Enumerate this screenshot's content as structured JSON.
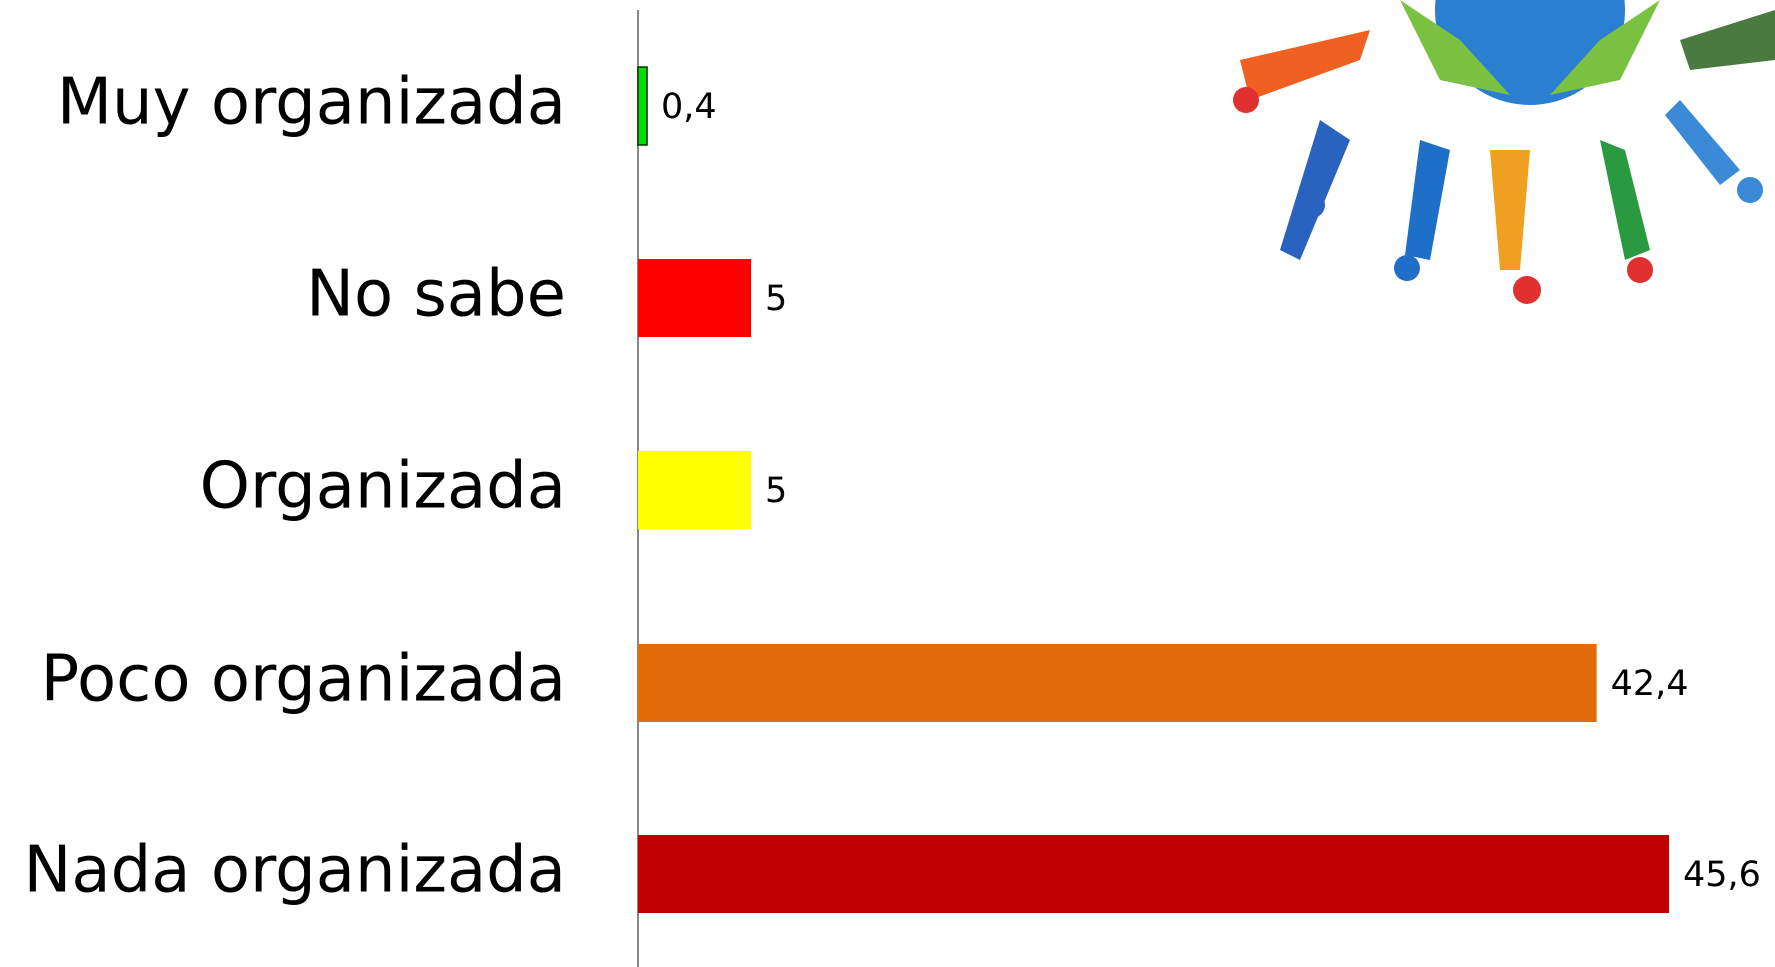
{
  "chart_data": {
    "type": "bar",
    "orientation": "horizontal",
    "categories": [
      "Muy organizada",
      "No sabe",
      "Organizada",
      "Poco organizada",
      "Nada organizada"
    ],
    "values": [
      0.4,
      5,
      5,
      42.4,
      45.6
    ],
    "value_labels": [
      "0,4",
      "5",
      "5",
      "42,4",
      "45,6"
    ],
    "colors": [
      "#00dd00",
      "#ff0000",
      "#ffff00",
      "#e36c0a",
      "#c00000"
    ]
  }
}
